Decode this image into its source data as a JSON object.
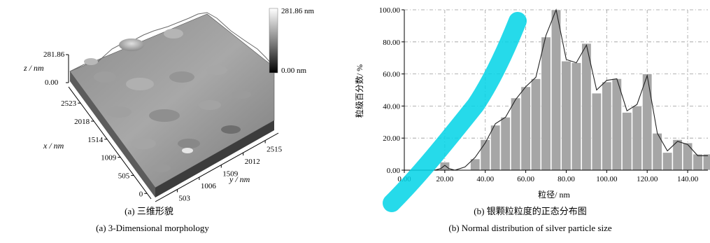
{
  "panel_a": {
    "colorbar_max": "281.86 nm",
    "colorbar_min": "0.00 nm",
    "z_label": "z / nm",
    "z_max": "281.86",
    "z_min": "0.00",
    "x_label": "x / nm",
    "x_ticks": [
      "2523",
      "2018",
      "1514",
      "1009",
      "505",
      "0"
    ],
    "y_label": "y / nm",
    "y_ticks": [
      "503",
      "1006",
      "1509",
      "2012",
      "2515"
    ],
    "caption_cn": "(a)  三维形貌",
    "caption_en": "(a) 3-Dimensional morphology"
  },
  "panel_b": {
    "caption_cn": "(b)  银颗粒粒度的正态分布图",
    "caption_en": "(b) Normal distribution of silver particle size"
  },
  "chart_data": [
    {
      "type": "bar",
      "title": "",
      "xlabel": "粒径/ nm",
      "ylabel": "粒级百分数/ %",
      "xlim": [
        0,
        150
      ],
      "ylim": [
        0,
        100
      ],
      "x_ticks": [
        "0.00",
        "20.00",
        "40.00",
        "60.00",
        "80.00",
        "100.00",
        "120.00",
        "140.00"
      ],
      "y_ticks": [
        "0.00",
        "20.00",
        "40.00",
        "60.00",
        "80.00",
        "100.00"
      ],
      "bar_width": 5,
      "grid": true,
      "colors": {
        "bar": "#a6a6a6",
        "line": "#222222",
        "grid": "#9a9a9a"
      },
      "x": [
        20,
        35,
        40,
        45,
        50,
        55,
        60,
        65,
        70,
        75,
        80,
        85,
        90,
        95,
        100,
        105,
        110,
        115,
        120,
        125,
        130,
        135,
        140,
        145,
        150
      ],
      "values": [
        5,
        7,
        19,
        28,
        33,
        45,
        52,
        57,
        83,
        100,
        68,
        67,
        79,
        48,
        55,
        57,
        36,
        40,
        60,
        23,
        11,
        19,
        17,
        10,
        10
      ],
      "curve": {
        "x": [
          0,
          15,
          18,
          20,
          22,
          25,
          30,
          35,
          40,
          45,
          50,
          55,
          60,
          65,
          70,
          75,
          80,
          85,
          90,
          95,
          100,
          105,
          110,
          115,
          120,
          125,
          130,
          135,
          140,
          145,
          150
        ],
        "y": [
          0,
          0,
          1,
          3,
          1,
          0,
          2,
          8,
          17,
          29,
          33,
          44,
          52,
          58,
          84,
          100,
          69,
          67,
          78,
          50,
          56,
          57,
          37,
          41,
          59,
          23,
          12,
          18,
          16,
          9,
          9
        ]
      }
    }
  ]
}
